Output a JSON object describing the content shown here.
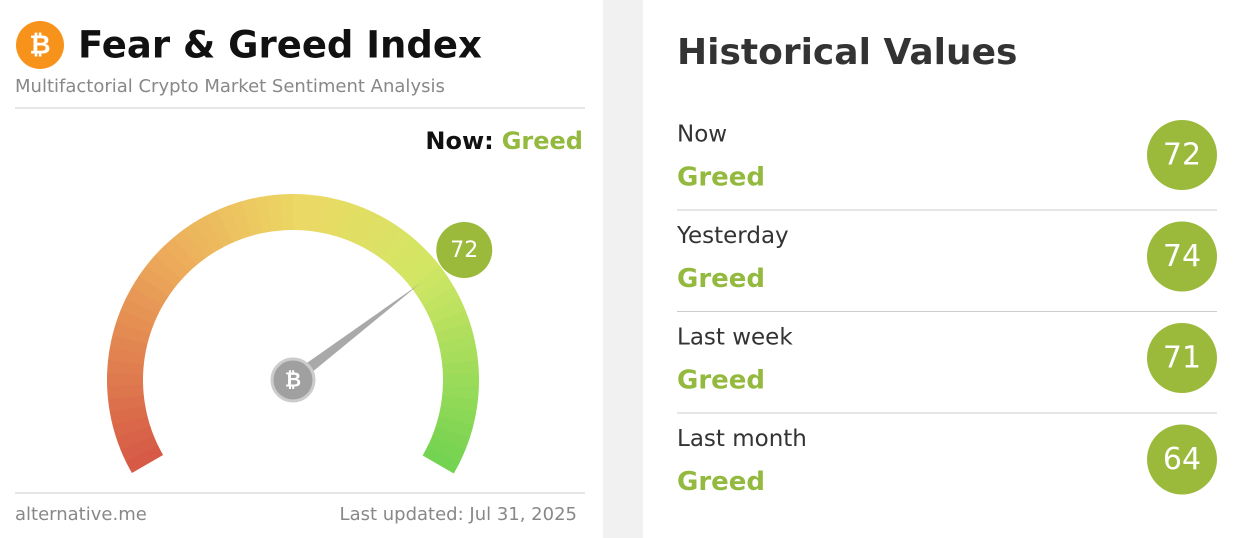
{
  "header": {
    "title": "Fear & Greed Index",
    "subtitle": "Multifactorial Crypto Market Sentiment Analysis"
  },
  "now": {
    "label": "Now:",
    "status": "Greed"
  },
  "gauge": {
    "value": 72
  },
  "footer": {
    "source": "alternative.me",
    "updated": "Last updated: Jul 31, 2025"
  },
  "history": {
    "title": "Historical Values",
    "items": [
      {
        "label": "Now",
        "status": "Greed",
        "value": 72
      },
      {
        "label": "Yesterday",
        "status": "Greed",
        "value": 74
      },
      {
        "label": "Last week",
        "status": "Greed",
        "value": 71
      },
      {
        "label": "Last month",
        "status": "Greed",
        "value": 64
      }
    ]
  }
}
